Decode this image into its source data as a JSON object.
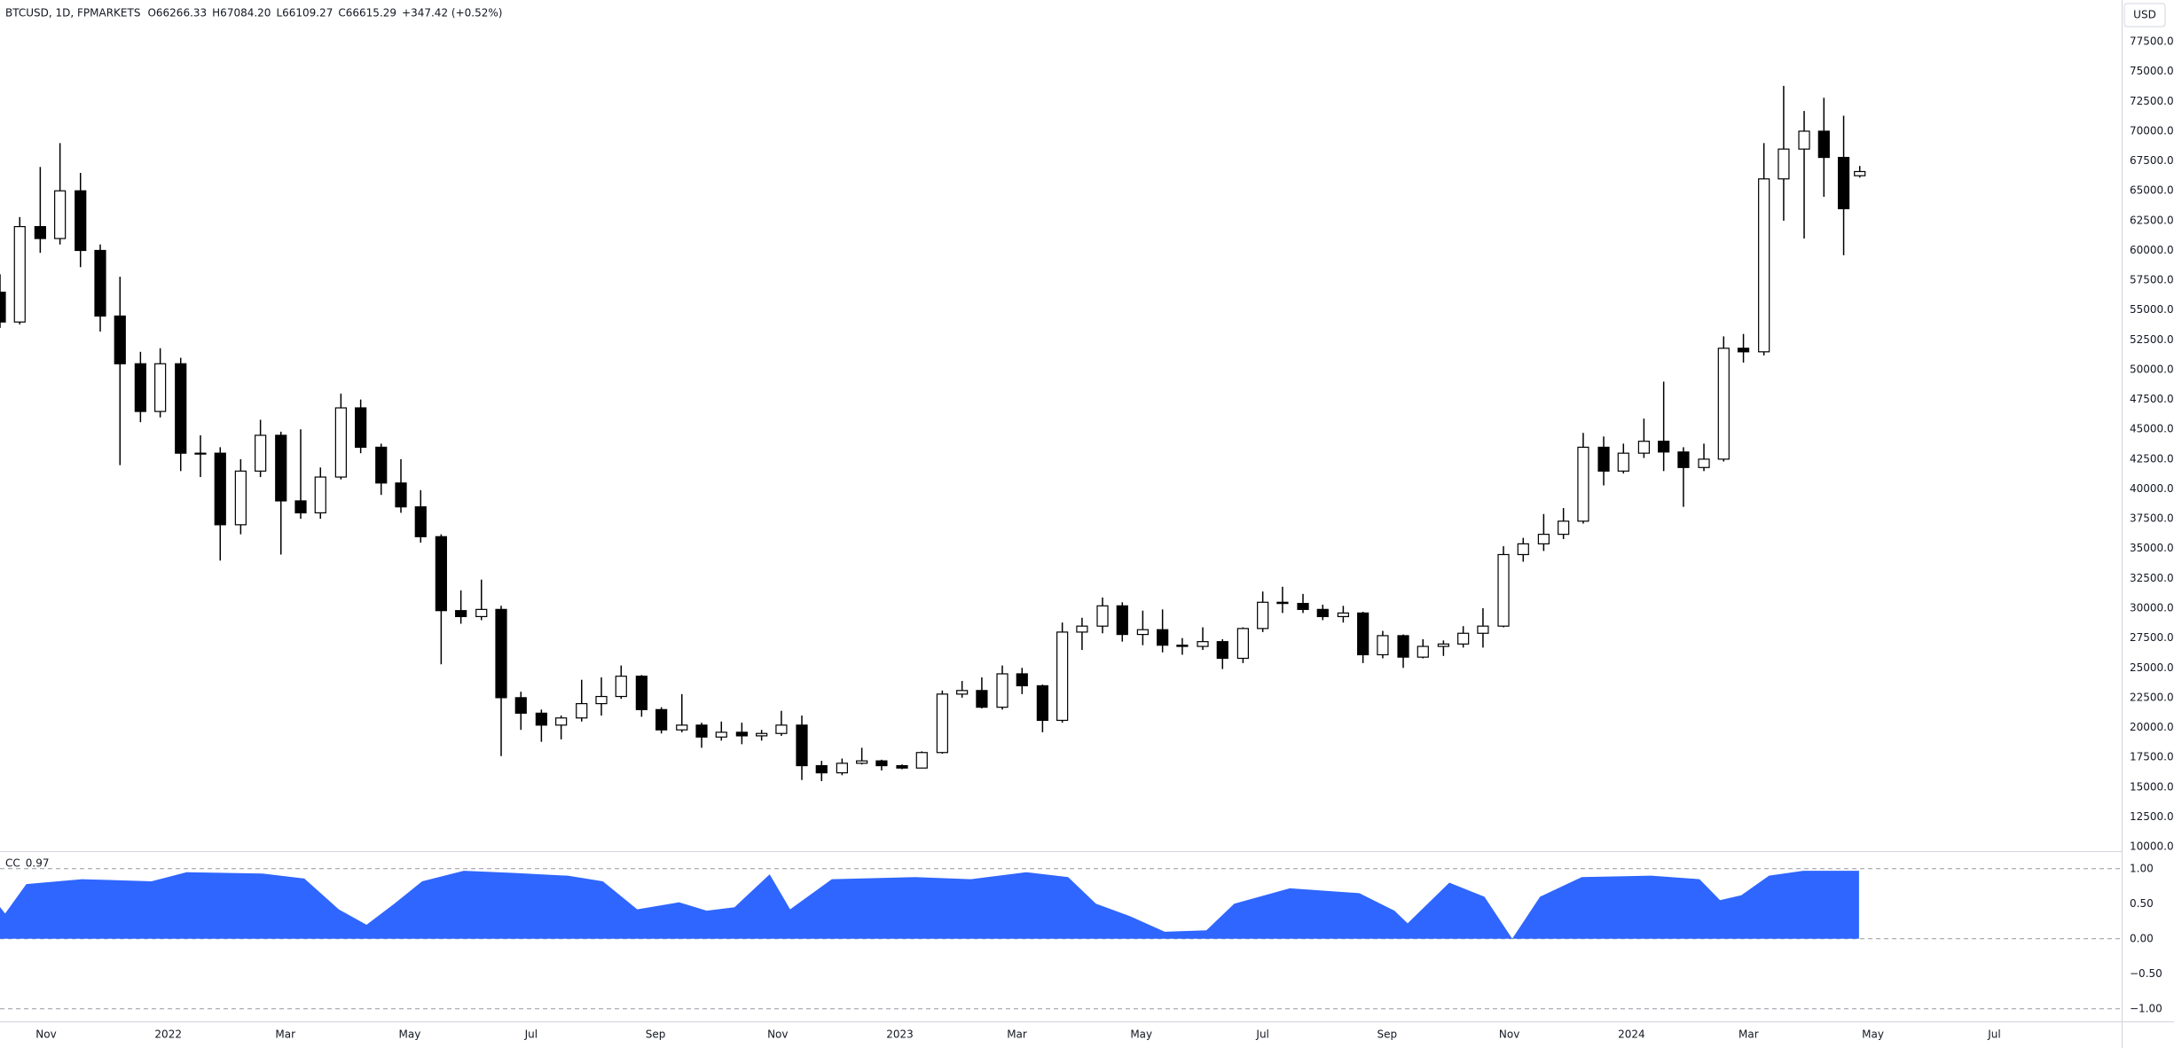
{
  "chart_data": [
    {
      "type": "candlestick",
      "title": "BTCUSD, 1D, FPMARKETS",
      "ohlc_labels": [
        "O66266.33",
        "H67084.20",
        "L66109.27",
        "C66615.29"
      ],
      "change_label": "+347.42 (+0.52%)",
      "y_label": "USD",
      "up_color": "#ffffff",
      "down_color": "#000000",
      "wick_color": "#000000",
      "grid": false,
      "xlim": [
        2021.77,
        2024.67
      ],
      "xticks": [
        {
          "value": 2021.833,
          "label": "Nov"
        },
        2022,
        {
          "value": 2022.16,
          "label": "Mar"
        },
        {
          "value": 2022.33,
          "label": "May"
        },
        {
          "value": 2022.496,
          "label": "Jul"
        },
        {
          "value": 2022.666,
          "label": "Sep"
        },
        {
          "value": 2022.833,
          "label": "Nov"
        },
        2023,
        {
          "value": 2023.16,
          "label": "Mar"
        },
        {
          "value": 2023.33,
          "label": "May"
        },
        {
          "value": 2023.496,
          "label": "Jul"
        },
        {
          "value": 2023.666,
          "label": "Sep"
        },
        {
          "value": 2023.833,
          "label": "Nov"
        },
        2024,
        {
          "value": 2024.16,
          "label": "Mar"
        },
        {
          "value": 2024.33,
          "label": "May"
        },
        {
          "value": 2024.496,
          "label": "Jul"
        }
      ],
      "ylim": [
        9630,
        81000
      ],
      "yticks": [
        {
          "value": 10000,
          "label": "10000.00"
        },
        {
          "value": 12500,
          "label": "12500.00"
        },
        {
          "value": 15000,
          "label": "15000.00"
        },
        {
          "value": 17500,
          "label": "17500.00"
        },
        {
          "value": 20000,
          "label": "20000.00"
        },
        {
          "value": 22500,
          "label": "22500.00"
        },
        {
          "value": 25000,
          "label": "25000.00"
        },
        {
          "value": 27500,
          "label": "27500.00"
        },
        {
          "value": 30000,
          "label": "30000.00"
        },
        {
          "value": 32500,
          "label": "32500.00"
        },
        {
          "value": 35000,
          "label": "35000.00"
        },
        {
          "value": 37500,
          "label": "37500.00"
        },
        {
          "value": 40000,
          "label": "40000.00"
        },
        {
          "value": 42500,
          "label": "42500.00"
        },
        {
          "value": 45000,
          "label": "45000.00"
        },
        {
          "value": 47500,
          "label": "47500.00"
        },
        {
          "value": 50000,
          "label": "50000.00"
        },
        {
          "value": 52500,
          "label": "52500.00"
        },
        {
          "value": 55000,
          "label": "55000.00"
        },
        {
          "value": 57500,
          "label": "57500.00"
        },
        {
          "value": 60000,
          "label": "60000.00"
        },
        {
          "value": 62500,
          "label": "62500.00"
        },
        {
          "value": 65000,
          "label": "65000.00"
        },
        {
          "value": 67500,
          "label": "67500.00"
        },
        {
          "value": 70000,
          "label": "70000.00"
        },
        {
          "value": 72500,
          "label": "72500.00"
        },
        {
          "value": 75000,
          "label": "75000.00"
        },
        {
          "value": 77500,
          "label": "77500.00"
        }
      ],
      "x": [
        2021.77,
        2021.797,
        2021.825,
        2021.852,
        2021.88,
        2021.907,
        2021.934,
        2021.962,
        2021.989,
        2022.017,
        2022.044,
        2022.071,
        2022.099,
        2022.126,
        2022.154,
        2022.181,
        2022.208,
        2022.236,
        2022.263,
        2022.291,
        2022.318,
        2022.345,
        2022.373,
        2022.4,
        2022.428,
        2022.455,
        2022.482,
        2022.51,
        2022.537,
        2022.565,
        2022.592,
        2022.619,
        2022.647,
        2022.674,
        2022.702,
        2022.729,
        2022.756,
        2022.784,
        2022.811,
        2022.838,
        2022.866,
        2022.893,
        2022.921,
        2022.948,
        2022.975,
        2023.003,
        2023.03,
        2023.058,
        2023.085,
        2023.112,
        2023.14,
        2023.167,
        2023.195,
        2023.222,
        2023.249,
        2023.277,
        2023.304,
        2023.332,
        2023.359,
        2023.386,
        2023.414,
        2023.441,
        2023.469,
        2023.496,
        2023.523,
        2023.551,
        2023.578,
        2023.606,
        2023.633,
        2023.66,
        2023.688,
        2023.715,
        2023.743,
        2023.77,
        2023.797,
        2023.825,
        2023.852,
        2023.88,
        2023.907,
        2023.934,
        2023.962,
        2023.989,
        2024.017,
        2024.044,
        2024.071,
        2024.099,
        2024.126,
        2024.153,
        2024.181,
        2024.208,
        2024.236,
        2024.263,
        2024.29,
        2024.312
      ],
      "open": [
        56500,
        54000,
        62000,
        61000,
        65000,
        60000,
        54500,
        50500,
        46500,
        50500,
        43000,
        43000,
        37000,
        41500,
        44500,
        39000,
        38000,
        41000,
        46800,
        43500,
        40500,
        38500,
        36000,
        29800,
        29300,
        29900,
        22500,
        21200,
        20200,
        20800,
        22000,
        22600,
        24300,
        21500,
        19800,
        20200,
        19200,
        19600,
        19300,
        19500,
        20200,
        16800,
        16200,
        17000,
        17200,
        16800,
        16600,
        17900,
        22800,
        23100,
        21700,
        24500,
        23500,
        20600,
        28000,
        28500,
        30200,
        27800,
        28200,
        26900,
        26800,
        27200,
        25800,
        28300,
        30500,
        30400,
        29900,
        29300,
        29600,
        26100,
        27700,
        25900,
        26800,
        27000,
        27900,
        28500,
        34500,
        35400,
        36200,
        37300,
        43500,
        41500,
        43000,
        44000,
        43100,
        41800,
        42500,
        51800,
        51500,
        66000,
        68500,
        70000,
        67800,
        66266.33
      ],
      "high": [
        58000,
        62800,
        67000,
        69000,
        66500,
        60500,
        57800,
        51500,
        51800,
        51000,
        44500,
        43500,
        42500,
        45800,
        44800,
        45000,
        41800,
        48000,
        47500,
        43800,
        42500,
        39900,
        36200,
        31500,
        32400,
        30200,
        23000,
        21500,
        21000,
        24000,
        24200,
        25200,
        24400,
        21700,
        22800,
        20400,
        20500,
        20400,
        19800,
        21400,
        21000,
        17200,
        17400,
        18300,
        17300,
        16900,
        18000,
        23100,
        23900,
        24200,
        25200,
        25000,
        23600,
        28800,
        29200,
        30900,
        30500,
        29800,
        29900,
        27500,
        28400,
        27400,
        28400,
        31400,
        31800,
        31200,
        30300,
        30200,
        29700,
        28100,
        27800,
        27400,
        27300,
        28500,
        30000,
        35200,
        35900,
        37900,
        38400,
        44700,
        44400,
        43800,
        45900,
        49000,
        43500,
        43800,
        52800,
        53000,
        69000,
        73800,
        71700,
        72800,
        71300,
        67084.2
      ],
      "low": [
        53500,
        53800,
        59800,
        60500,
        58600,
        53200,
        42000,
        45600,
        46000,
        41500,
        41000,
        34000,
        36200,
        41000,
        34500,
        37500,
        37500,
        40800,
        43000,
        39500,
        38000,
        35500,
        25300,
        28700,
        29000,
        17600,
        19800,
        18800,
        19000,
        20500,
        21000,
        22400,
        20900,
        19500,
        19600,
        18300,
        18900,
        18600,
        18900,
        19300,
        15600,
        15500,
        16000,
        16900,
        16400,
        16500,
        16600,
        17800,
        22500,
        21600,
        21500,
        22800,
        19600,
        20400,
        26500,
        27900,
        27200,
        26900,
        26300,
        26100,
        26500,
        24900,
        25400,
        28000,
        29600,
        29600,
        29000,
        28800,
        25400,
        25800,
        25000,
        25800,
        26000,
        26700,
        26700,
        28400,
        33900,
        34800,
        35800,
        37100,
        40300,
        41300,
        42600,
        41500,
        38500,
        41500,
        42300,
        50600,
        51200,
        62500,
        61000,
        64500,
        59600,
        66109.27
      ],
      "close": [
        54000,
        62000,
        61000,
        65000,
        60000,
        54500,
        50500,
        46500,
        50500,
        43000,
        43000,
        37000,
        41500,
        44500,
        39000,
        38000,
        41000,
        46800,
        43500,
        40500,
        38500,
        36000,
        29800,
        29300,
        29900,
        22500,
        21200,
        20200,
        20800,
        22000,
        22600,
        24300,
        21500,
        19800,
        20200,
        19200,
        19600,
        19300,
        19500,
        20200,
        16800,
        16200,
        17000,
        17200,
        16800,
        16600,
        17900,
        22800,
        23100,
        21700,
        24500,
        23500,
        20600,
        28000,
        28500,
        30200,
        27800,
        28200,
        26900,
        26800,
        27200,
        25800,
        28300,
        30500,
        30400,
        29900,
        29300,
        29600,
        26100,
        27700,
        25900,
        26800,
        27000,
        27900,
        28500,
        34500,
        35400,
        36200,
        37300,
        43500,
        41500,
        43000,
        44000,
        43100,
        41800,
        42500,
        51800,
        51500,
        66000,
        68500,
        70000,
        67800,
        63500,
        66615.29
      ]
    },
    {
      "type": "area",
      "title": "CC",
      "color": "#2f66ff",
      "ylim": [
        -1.18,
        1.25
      ],
      "yticks": [
        {
          "value": 1,
          "label": "1.00"
        },
        {
          "value": 0.5,
          "label": "0.50"
        },
        {
          "value": 0,
          "label": "0.00"
        },
        {
          "value": -0.5,
          "label": "−0.50"
        },
        {
          "value": -1,
          "label": "−1.00"
        }
      ],
      "levels": [
        1,
        0,
        -1
      ],
      "x": [
        2021.768,
        2021.777,
        2021.806,
        2021.882,
        2021.977,
        2022.025,
        2022.129,
        2022.186,
        2022.233,
        2022.271,
        2022.309,
        2022.347,
        2022.404,
        2022.471,
        2022.546,
        2022.594,
        2022.641,
        2022.698,
        2022.736,
        2022.774,
        2022.822,
        2022.85,
        2022.907,
        2023.021,
        2023.097,
        2023.173,
        2023.23,
        2023.268,
        2023.315,
        2023.362,
        2023.419,
        2023.457,
        2023.533,
        2023.628,
        2023.676,
        2023.694,
        2023.751,
        2023.799,
        2023.837,
        2023.875,
        2023.932,
        2024.027,
        2024.093,
        2024.121,
        2024.15,
        2024.188,
        2024.235,
        2024.311
      ],
      "values": [
        0.48,
        0.36,
        0.78,
        0.85,
        0.82,
        0.95,
        0.93,
        0.86,
        0.42,
        0.2,
        0.5,
        0.82,
        0.97,
        0.94,
        0.9,
        0.82,
        0.42,
        0.52,
        0.4,
        0.45,
        0.92,
        0.42,
        0.85,
        0.88,
        0.85,
        0.95,
        0.88,
        0.5,
        0.32,
        0.1,
        0.12,
        0.5,
        0.72,
        0.65,
        0.4,
        0.22,
        0.8,
        0.6,
        0,
        0.6,
        0.88,
        0.9,
        0.85,
        0.55,
        0.62,
        0.9,
        0.97,
        0.97
      ]
    }
  ]
}
